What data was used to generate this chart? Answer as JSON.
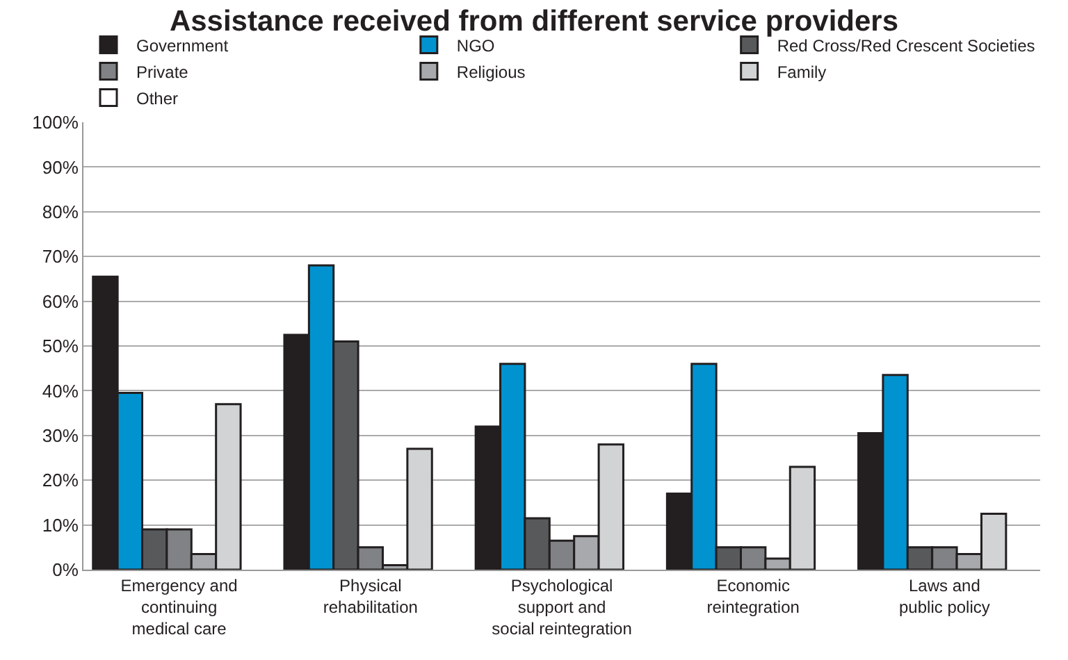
{
  "chart_data": {
    "type": "bar",
    "title": "Assistance received from different service providers",
    "categories": [
      "Emergency and\ncontinuing\nmedical care",
      "Physical\nrehabilitation",
      "Psychological\nsupport and\nsocial reintegration",
      "Economic\nreintegration",
      "Laws and\npublic policy"
    ],
    "series": [
      {
        "name": "Government",
        "color": "#231f20",
        "values": [
          65.5,
          52.5,
          32,
          17,
          30.5
        ]
      },
      {
        "name": "NGO",
        "color": "#0093d0",
        "values": [
          39.5,
          68,
          46,
          46,
          43.5
        ]
      },
      {
        "name": "Red Cross/Red Crescent Societies",
        "color": "#58595b",
        "values": [
          9,
          51,
          11.5,
          5,
          5
        ]
      },
      {
        "name": "Private",
        "color": "#808285",
        "values": [
          9,
          5,
          6.5,
          5,
          5
        ]
      },
      {
        "name": "Religious",
        "color": "#a7a9ac",
        "values": [
          3.5,
          1,
          7.5,
          2.5,
          3.5
        ]
      },
      {
        "name": "Family",
        "color": "#d1d3d4",
        "values": [
          37,
          27,
          28,
          23,
          12.5
        ]
      },
      {
        "name": "Other",
        "color": "#ffffff",
        "values": [
          null,
          null,
          null,
          null,
          null
        ]
      }
    ],
    "ylim": [
      0,
      100
    ],
    "yticks": [
      {
        "value": 0,
        "label": "0%"
      },
      {
        "value": 10,
        "label": "10%"
      },
      {
        "value": 20,
        "label": "20%"
      },
      {
        "value": 30,
        "label": "30%"
      },
      {
        "value": 40,
        "label": "40%"
      },
      {
        "value": 50,
        "label": "50%"
      },
      {
        "value": 60,
        "label": "60%"
      },
      {
        "value": 70,
        "label": "70%"
      },
      {
        "value": 80,
        "label": "80%"
      },
      {
        "value": 90,
        "label": "90%"
      },
      {
        "value": 100,
        "label": "100%"
      }
    ],
    "grid": "y",
    "legend": "top"
  }
}
